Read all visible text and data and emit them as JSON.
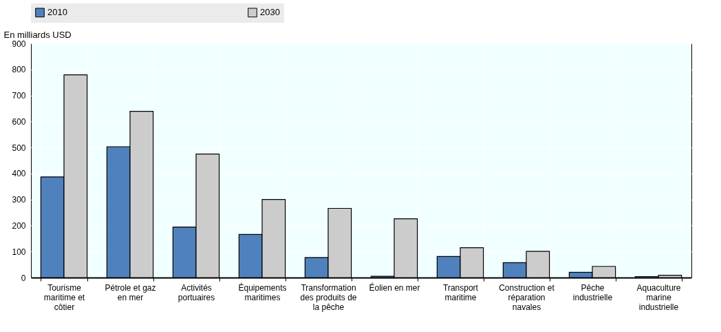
{
  "chart_data": {
    "type": "bar",
    "ylabel": "En milliards USD",
    "categories": [
      "Tourisme maritime et côtier",
      "Pétrole et gaz en mer",
      "Activités portuaires",
      "Équipements maritimes",
      "Transformation des produits de la pêche",
      "Éolien en mer",
      "Transport maritime",
      "Construction et réparation navales",
      "Pêche industrielle",
      "Aquaculture marine industrielle"
    ],
    "series": [
      {
        "name": "2010",
        "color": "#4f81bd",
        "values": [
          387,
          503,
          194,
          166,
          77,
          5,
          81,
          57,
          20,
          4
        ]
      },
      {
        "name": "2030",
        "color": "#cccccc",
        "values": [
          779,
          639,
          475,
          300,
          266,
          226,
          115,
          101,
          43,
          9
        ]
      }
    ],
    "ylim": [
      0,
      900
    ],
    "yticks": [
      0,
      100,
      200,
      300,
      400,
      500,
      600,
      700,
      800,
      900
    ],
    "grid": true,
    "legend": "top"
  }
}
